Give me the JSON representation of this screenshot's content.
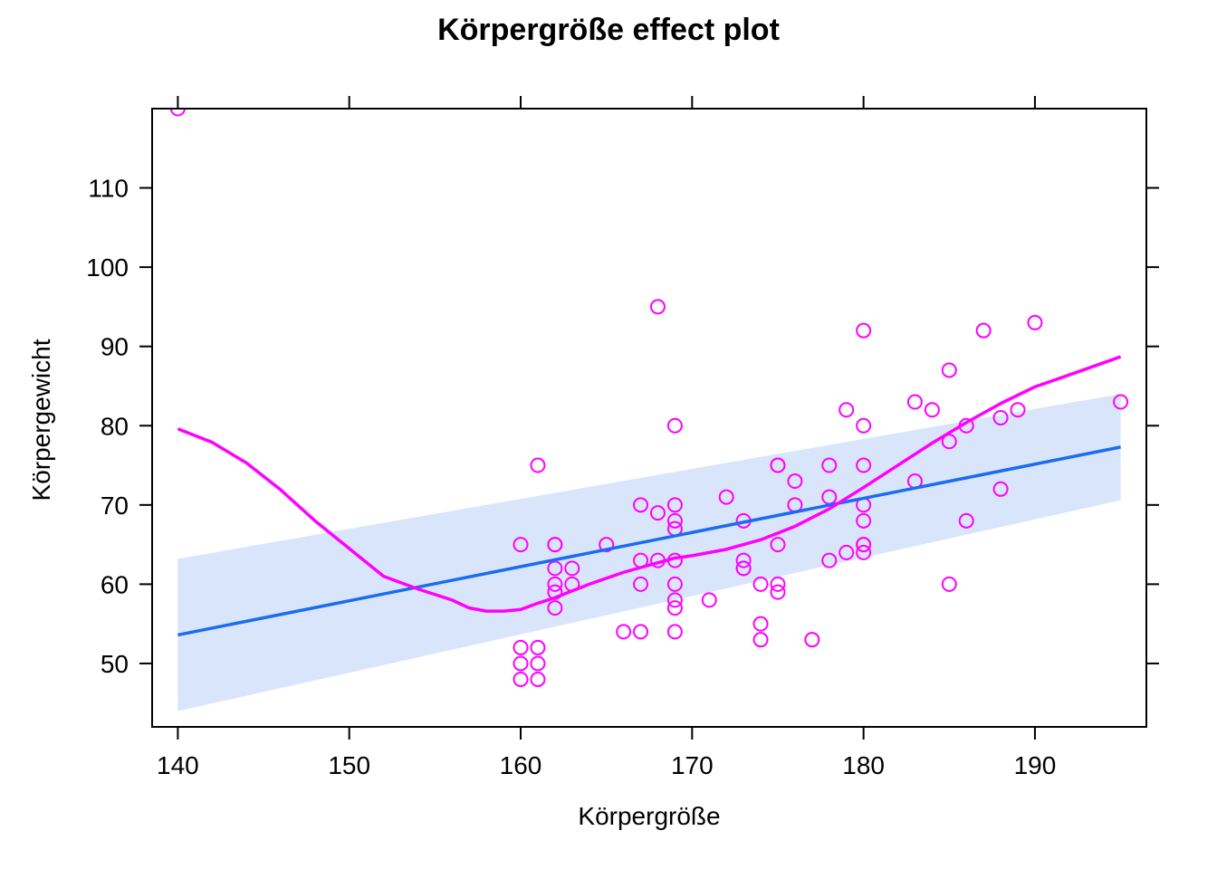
{
  "chart_data": {
    "type": "scatter",
    "title": "Körpergröße effect plot",
    "xlabel": "Körpergröße",
    "ylabel": "Körpergewicht",
    "xlim": [
      138.5,
      196.5
    ],
    "ylim": [
      42,
      120
    ],
    "xticks": [
      140,
      150,
      160,
      170,
      180,
      190
    ],
    "yticks": [
      50,
      60,
      70,
      80,
      90,
      100,
      110
    ],
    "grid": false,
    "colors": {
      "points": "#ff00ff",
      "smooth": "#ff00ff",
      "fit": "#1a6cf0",
      "band": "#d9e5fb"
    },
    "series": [
      {
        "kind": "points",
        "x": [
          140,
          160,
          160,
          160,
          160,
          161,
          161,
          161,
          161,
          162,
          162,
          162,
          162,
          162,
          162,
          163,
          163,
          165,
          166,
          167,
          167,
          167,
          167,
          168,
          168,
          168,
          169,
          169,
          169,
          169,
          169,
          169,
          169,
          169,
          169,
          171,
          172,
          173,
          173,
          173,
          173,
          174,
          174,
          174,
          175,
          175,
          175,
          175,
          175,
          176,
          176,
          177,
          178,
          178,
          178,
          179,
          179,
          180,
          180,
          180,
          180,
          180,
          180,
          180,
          180,
          183,
          183,
          184,
          185,
          185,
          185,
          186,
          186,
          187,
          188,
          188,
          189,
          190,
          195
        ],
        "y": [
          120,
          65,
          52,
          50,
          48,
          75,
          52,
          50,
          48,
          65,
          62,
          60,
          59,
          57,
          65,
          62,
          60,
          65,
          54,
          70,
          63,
          60,
          54,
          95,
          69,
          63,
          80,
          70,
          68,
          67,
          60,
          58,
          57,
          54,
          63,
          58,
          71,
          68,
          63,
          62,
          62,
          60,
          55,
          53,
          75,
          65,
          60,
          59,
          75,
          73,
          70,
          53,
          75,
          71,
          63,
          82,
          64,
          92,
          80,
          75,
          70,
          68,
          65,
          64,
          65,
          83,
          73,
          82,
          87,
          78,
          60,
          80,
          68,
          92,
          81,
          72,
          82,
          93,
          83
        ]
      },
      {
        "kind": "fit",
        "x": [
          140,
          195
        ],
        "y": [
          53.6,
          77.3
        ],
        "lower": [
          44,
          70.6
        ],
        "upper": [
          63.2,
          84
        ]
      },
      {
        "kind": "smooth",
        "x": [
          140,
          142,
          144,
          146,
          148,
          150,
          152,
          154,
          156,
          157,
          158,
          159,
          160,
          161,
          162,
          164,
          166,
          168,
          169,
          170,
          172,
          174,
          176,
          178,
          180,
          182,
          184,
          186,
          188,
          190,
          192,
          195
        ],
        "y": [
          79.6,
          77.9,
          75.3,
          71.9,
          68.0,
          64.5,
          61.0,
          59.4,
          58.0,
          57.0,
          56.6,
          56.6,
          56.8,
          57.6,
          58.3,
          60.0,
          61.5,
          62.7,
          63.3,
          63.6,
          64.4,
          65.6,
          67.3,
          69.5,
          72.2,
          75.0,
          77.8,
          80.4,
          82.8,
          84.9,
          86.4,
          88.7
        ]
      }
    ]
  }
}
